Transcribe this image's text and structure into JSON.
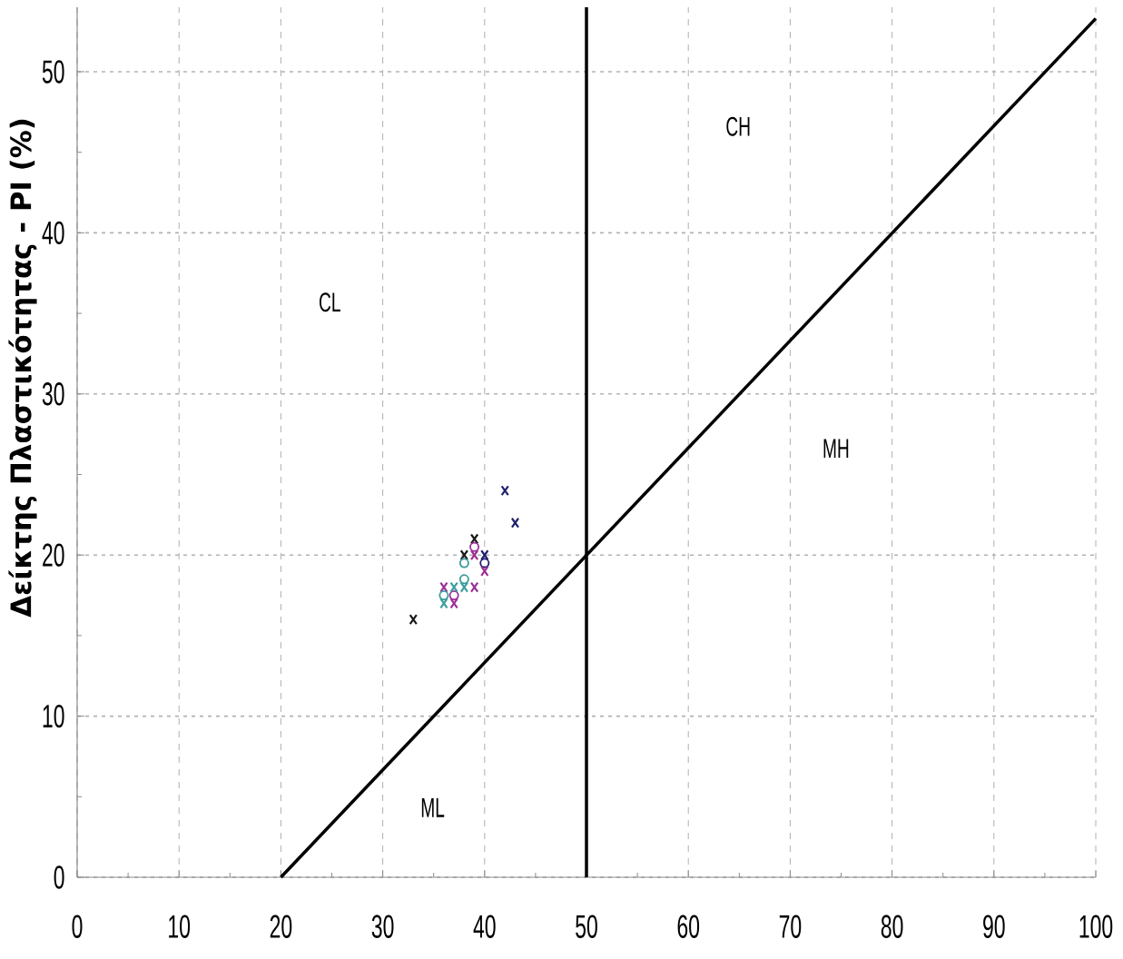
{
  "chart_data": {
    "type": "scatter",
    "ylabel": "Δείκτης Πλαστικότητας - PI (%)",
    "xlim": [
      0,
      100
    ],
    "ylim": [
      0,
      54
    ],
    "xticks": [
      0,
      {
        "value": 5,
        "label": null
      },
      10,
      {
        "value": 15,
        "label": null
      },
      20,
      {
        "value": 25,
        "label": null
      },
      30,
      {
        "value": 35,
        "label": null
      },
      40,
      {
        "value": 45,
        "label": null
      },
      50,
      {
        "value": 55,
        "label": null
      },
      60,
      {
        "value": 65,
        "label": null
      },
      70,
      {
        "value": 75,
        "label": null
      },
      80,
      {
        "value": 85,
        "label": null
      },
      90,
      {
        "value": 95,
        "label": null
      },
      100
    ],
    "yticks": [
      0,
      {
        "value": 5,
        "label": null
      },
      10,
      {
        "value": 15,
        "label": null
      },
      20,
      {
        "value": 25,
        "label": null
      },
      30,
      {
        "value": 35,
        "label": null
      },
      40,
      {
        "value": 45,
        "label": null
      },
      50
    ],
    "grid": true,
    "ref_lines": [
      {
        "axis": "x",
        "value": 50,
        "color": "#000000"
      }
    ],
    "series": [
      {
        "type": "line",
        "color": "#000000",
        "marker": "none",
        "x": [
          20,
          100
        ],
        "values": [
          0,
          53.3
        ]
      },
      {
        "color": "#1a1a1a",
        "marker": "cross",
        "x": [
          33,
          38,
          39
        ],
        "values": [
          16,
          20,
          21
        ]
      },
      {
        "color": "#202070",
        "marker": "cross",
        "x": [
          40,
          42,
          43
        ],
        "values": [
          20,
          24,
          22
        ]
      },
      {
        "color": "#202070",
        "marker": "circle",
        "x": [
          40
        ],
        "values": [
          19.5
        ]
      },
      {
        "color": "#9c2f96",
        "marker": "cross",
        "x": [
          36,
          37,
          39,
          39,
          40
        ],
        "values": [
          18,
          17,
          18,
          20,
          19
        ]
      },
      {
        "color": "#9c2f96",
        "marker": "circle",
        "x": [
          37,
          39
        ],
        "values": [
          17.5,
          20.5
        ]
      },
      {
        "color": "#3d9c9c",
        "marker": "cross",
        "x": [
          36,
          37,
          38
        ],
        "values": [
          17,
          18,
          18
        ]
      },
      {
        "color": "#3d9c9c",
        "marker": "circle",
        "x": [
          36,
          38,
          38
        ],
        "values": [
          17.5,
          18.5,
          19.5
        ]
      }
    ],
    "annotations": [
      "CL",
      "CH",
      "MH",
      "ML"
    ]
  }
}
